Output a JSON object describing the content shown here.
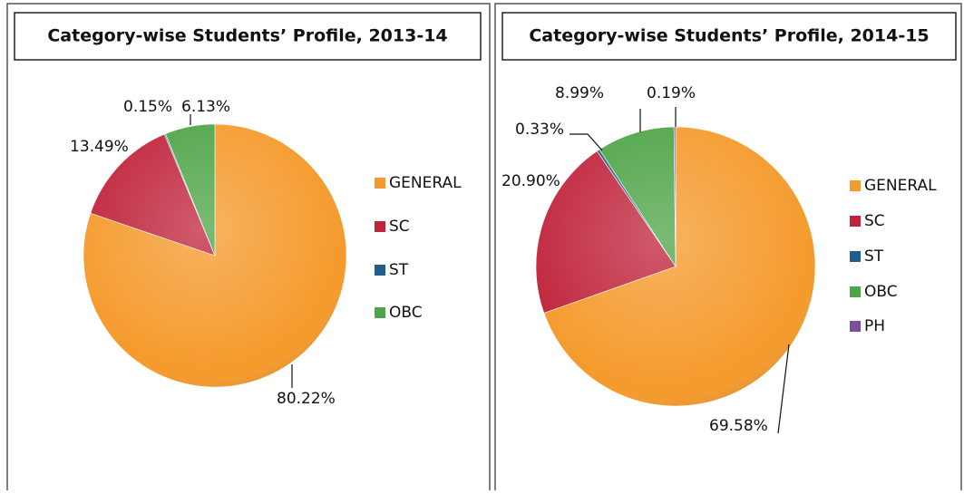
{
  "chart_data": [
    {
      "type": "pie",
      "title": "Category-wise Students’ Profile, 2013-14",
      "categories": [
        "GENERAL",
        "SC",
        "ST",
        "OBC"
      ],
      "values": [
        80.22,
        13.49,
        0.15,
        6.13
      ],
      "value_labels": [
        "80.22%",
        "13.49%",
        "0.15%",
        "6.13%"
      ],
      "colors": [
        "#f59a2c",
        "#c0243b",
        "#215e8e",
        "#4ea447"
      ],
      "legend": "right"
    },
    {
      "type": "pie",
      "title": "Category-wise Students’ Profile, 2014-15",
      "categories": [
        "GENERAL",
        "SC",
        "ST",
        "OBC",
        "PH"
      ],
      "values": [
        69.58,
        20.9,
        0.33,
        8.99,
        0.19
      ],
      "value_labels": [
        "69.58%",
        "20.90%",
        "0.33%",
        "8.99%",
        "0.19%"
      ],
      "colors": [
        "#f59a2c",
        "#c0243b",
        "#215e8e",
        "#4ea447",
        "#7a4f9c"
      ],
      "legend": "right"
    }
  ]
}
